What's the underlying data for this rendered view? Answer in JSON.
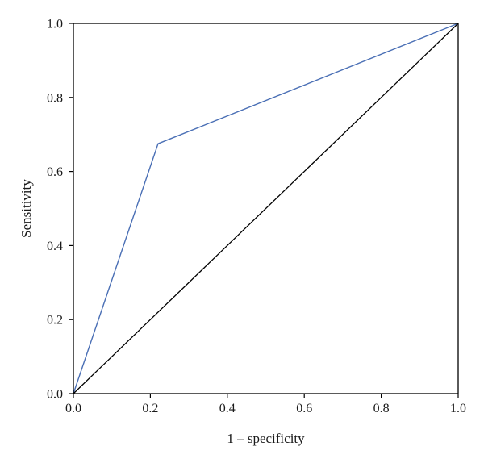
{
  "chart_data": {
    "type": "line",
    "title": "",
    "xlabel": "1 – specificity",
    "ylabel": "Sensitivity",
    "xlim": [
      0,
      1
    ],
    "ylim": [
      0,
      1
    ],
    "x_ticks": [
      "0.0",
      "0.2",
      "0.4",
      "0.6",
      "0.8",
      "1.0"
    ],
    "y_ticks": [
      "0.0",
      "0.2",
      "0.4",
      "0.6",
      "0.8",
      "1.0"
    ],
    "x_tick_values": [
      0,
      0.2,
      0.4,
      0.6,
      0.8,
      1.0
    ],
    "y_tick_values": [
      0,
      0.2,
      0.4,
      0.6,
      0.8,
      1.0
    ],
    "grid": false,
    "series": [
      {
        "color": "#4a6fb5",
        "x": [
          0.0,
          0.22,
          1.0
        ],
        "y": [
          0.0,
          0.675,
          1.0
        ]
      },
      {
        "color": "#000000",
        "x": [
          0.0,
          1.0
        ],
        "y": [
          0.0,
          1.0
        ]
      }
    ]
  }
}
